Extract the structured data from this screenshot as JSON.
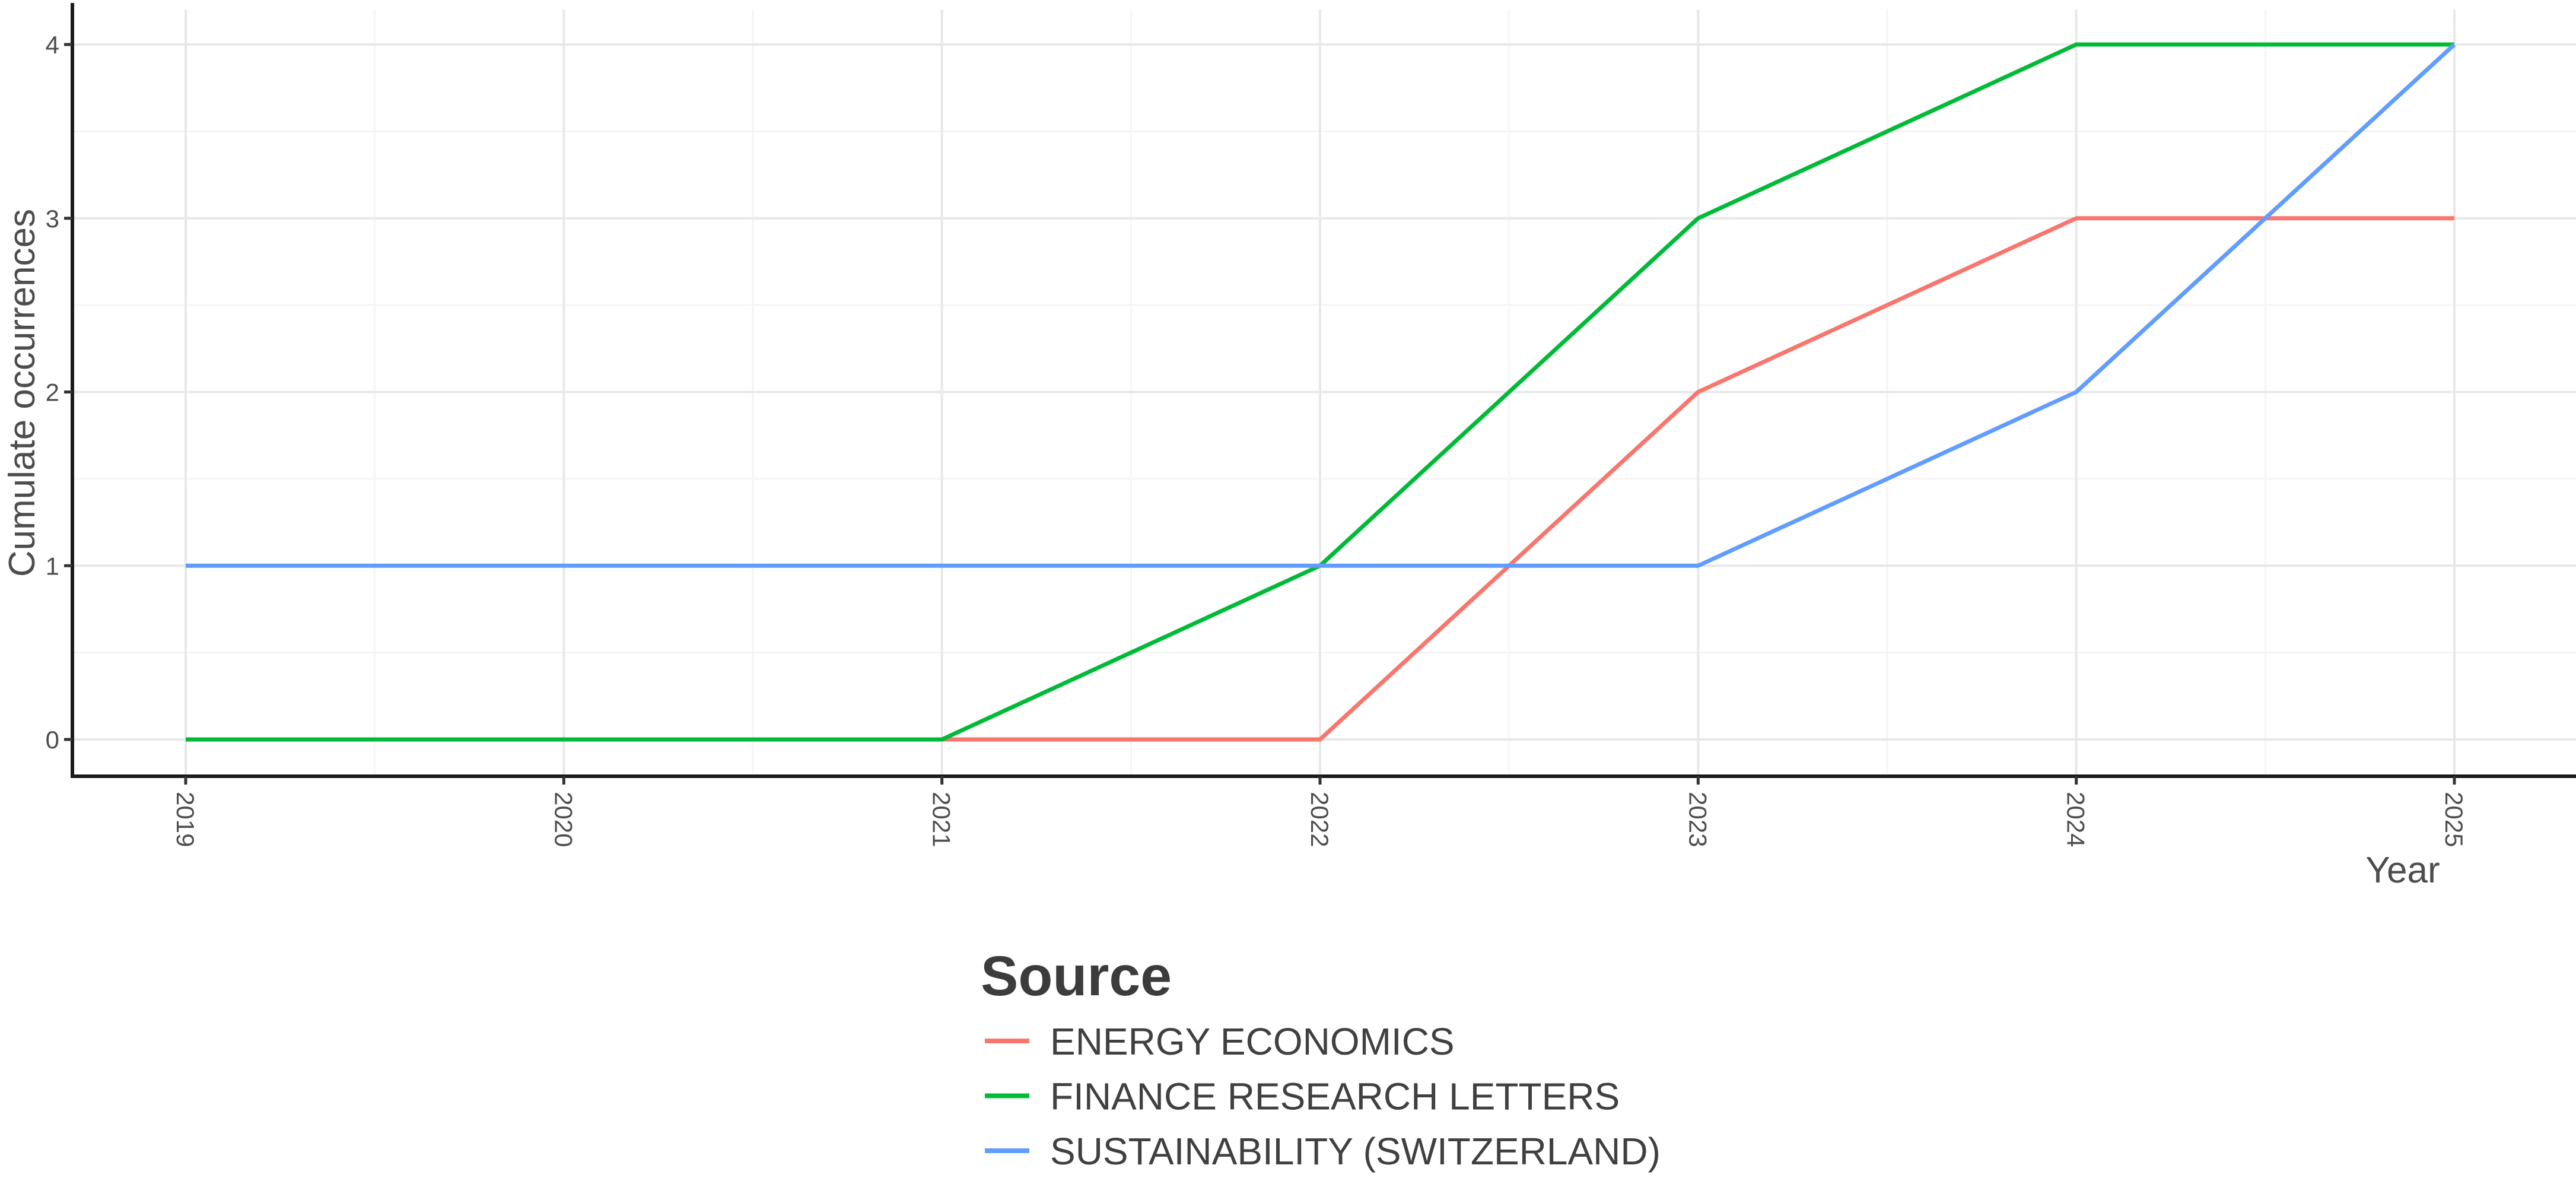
{
  "figure": {
    "x_axis": {
      "title": "Year"
    },
    "y_axis": {
      "title": "Cumulate occurrences"
    },
    "legend": {
      "title": "Source",
      "items": [
        {
          "label": "ENERGY ECONOMICS",
          "color": "#F8766D"
        },
        {
          "label": "FINANCE RESEARCH LETTERS",
          "color": "#00BA38"
        },
        {
          "label": "SUSTAINABILITY (SWITZERLAND)",
          "color": "#619CFF"
        }
      ]
    }
  },
  "chart_data": {
    "type": "line",
    "x": [
      2019,
      2020,
      2021,
      2022,
      2023,
      2024,
      2025
    ],
    "x_tick_labels": [
      "2019",
      "2020",
      "2021",
      "2022",
      "2023",
      "2024",
      "2025"
    ],
    "y_ticks": [
      0,
      1,
      2,
      3,
      4
    ],
    "y_tick_labels": [
      "0",
      "1",
      "2",
      "3",
      "4"
    ],
    "series": [
      {
        "name": "ENERGY ECONOMICS",
        "color": "#F8766D",
        "values": [
          0,
          0,
          0,
          0,
          2,
          3,
          3
        ]
      },
      {
        "name": "FINANCE RESEARCH LETTERS",
        "color": "#00BA38",
        "values": [
          0,
          0,
          0,
          1,
          3,
          4,
          4
        ]
      },
      {
        "name": "SUSTAINABILITY (SWITZERLAND)",
        "color": "#619CFF",
        "values": [
          1,
          1,
          1,
          1,
          1,
          2,
          4
        ]
      }
    ],
    "title": "",
    "xlabel": "Year",
    "ylabel": "Cumulate occurrences",
    "ylim": [
      0,
      4
    ],
    "xlim": [
      2019,
      2025
    ],
    "grid": true,
    "minor_grid": true,
    "legend_position": "bottom-left",
    "colors": {
      "grid_major": "#E8E8E8",
      "grid_minor": "#F5F5F5",
      "axis_line": "#1a1a1a",
      "tick_mark": "#333333",
      "background": "#ffffff"
    }
  }
}
